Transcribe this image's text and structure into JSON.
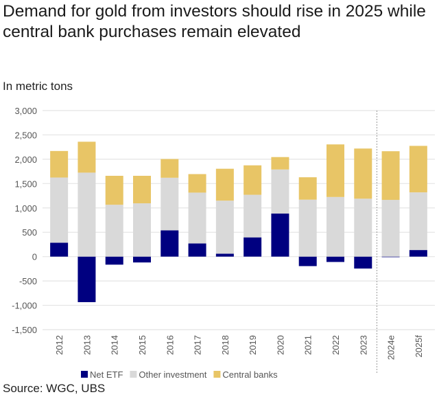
{
  "title": "Demand for gold from investors should rise in 2025 while central bank purchases remain elevated",
  "subtitle": "In metric tons",
  "source": "Source: WGC, UBS",
  "chart_data": {
    "type": "bar",
    "stacked": true,
    "categories": [
      "2012",
      "2013",
      "2014",
      "2015",
      "2016",
      "2017",
      "2018",
      "2019",
      "2020",
      "2021",
      "2022",
      "2023",
      "2024e",
      "2025f"
    ],
    "series": [
      {
        "name": "Net ETF",
        "color": "#000080",
        "values": [
          285,
          -935,
          -165,
          -120,
          540,
          270,
          60,
          395,
          885,
          -195,
          -110,
          -245,
          -10,
          135
        ]
      },
      {
        "name": "Other investment",
        "color": "#d9d9d9",
        "values": [
          1340,
          1725,
          1065,
          1095,
          1080,
          1045,
          1090,
          875,
          905,
          1170,
          1225,
          1190,
          1165,
          1185
        ]
      },
      {
        "name": "Central banks",
        "color": "#e8c566",
        "values": [
          545,
          635,
          595,
          565,
          385,
          380,
          655,
          605,
          255,
          460,
          1080,
          1030,
          1000,
          955
        ]
      }
    ],
    "ylim": [
      -1500,
      3000
    ],
    "yticks": [
      3000,
      2500,
      2000,
      1500,
      1000,
      500,
      0,
      -500,
      -1000,
      -1500
    ],
    "ytick_labels": [
      "3,000",
      "2,500",
      "2,000",
      "1,500",
      "1,000",
      "500",
      "0",
      "-500",
      "-1,000",
      "-1,500"
    ],
    "grid": true,
    "forecast_divider_after": "2023",
    "legend_placement": "bottom"
  }
}
